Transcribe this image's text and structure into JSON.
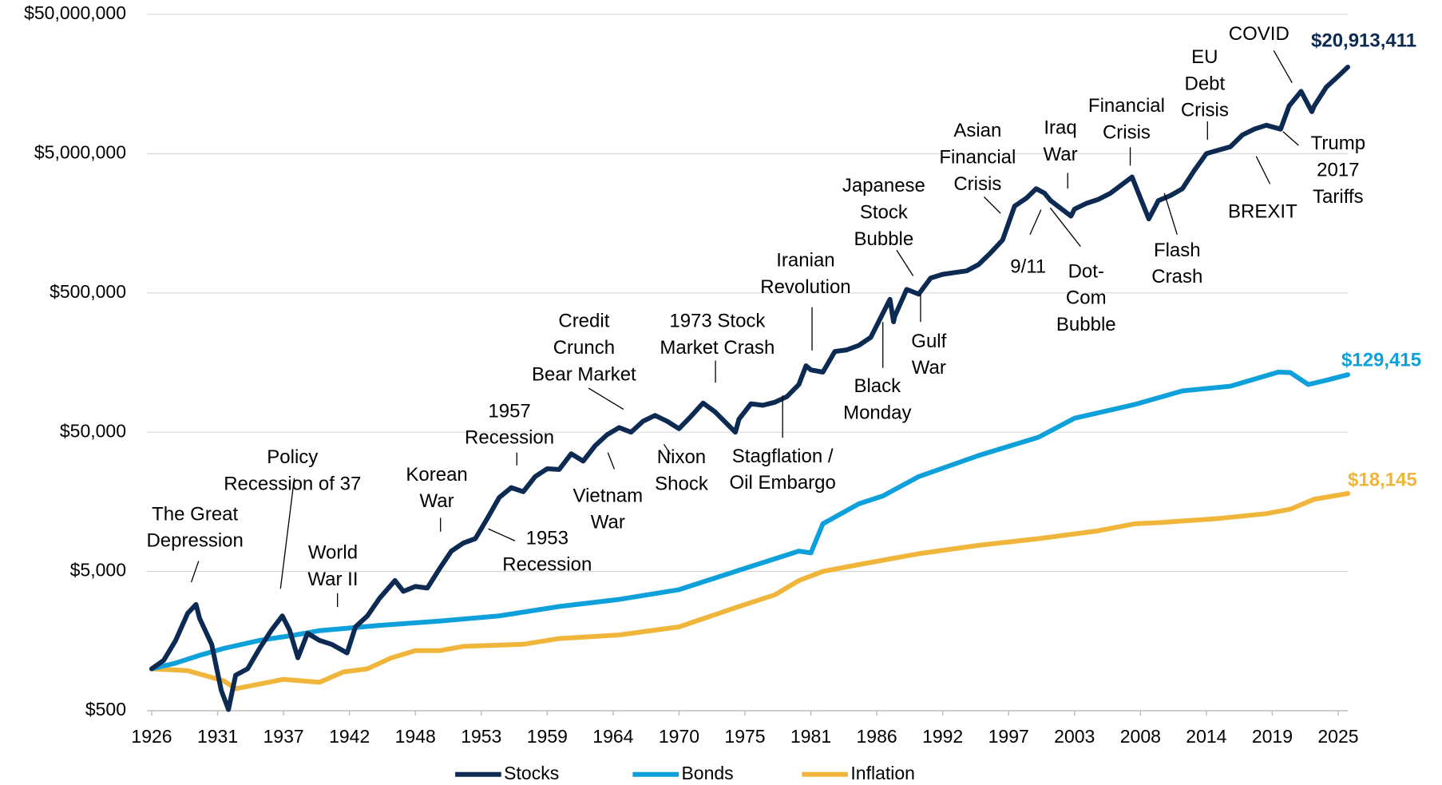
{
  "chart_data": {
    "type": "line",
    "log_scale": true,
    "grid": true,
    "legend": "bottom",
    "xlim": [
      1926,
      2025.8
    ],
    "xticks": [
      1926,
      {
        "value": 1931.5,
        "label": "1931"
      },
      1937,
      {
        "value": 1942.5,
        "label": "1942"
      },
      1948,
      {
        "value": 1953.5,
        "label": "1953"
      },
      1959,
      {
        "value": 1964.5,
        "label": "1964"
      },
      1970,
      {
        "value": 1975.5,
        "label": "1975"
      },
      1981,
      {
        "value": 1986.5,
        "label": "1986"
      },
      1992,
      {
        "value": 1997.5,
        "label": "1997"
      },
      2003,
      {
        "value": 2008.5,
        "label": "2008"
      },
      2014,
      {
        "value": 2019.5,
        "label": "2019"
      },
      2025
    ],
    "ylim": [
      500,
      50000000
    ],
    "yticks": [
      {
        "value": 500,
        "label": "$500"
      },
      {
        "value": 5000,
        "label": "$5,000"
      },
      {
        "value": 50000,
        "label": "$50,000"
      },
      {
        "value": 500000,
        "label": "$500,000"
      },
      {
        "value": 5000000,
        "label": "$5,000,000"
      },
      {
        "value": 50000000,
        "label": "$50,000,000"
      }
    ],
    "series": [
      {
        "name": "Stocks",
        "color": "#0d2a52",
        "x": [
          1926,
          1927,
          1928,
          1929,
          1929.7,
          1930,
          1931,
          1931.8,
          1932.4,
          1933,
          1934,
          1935,
          1936,
          1936.9,
          1937.5,
          1938.2,
          1939,
          1940,
          1941,
          1942.3,
          1943,
          1944,
          1945,
          1946.3,
          1947,
          1948,
          1949,
          1950,
          1951,
          1952,
          1953,
          1954,
          1955,
          1956,
          1957,
          1958,
          1959,
          1960,
          1961,
          1962,
          1963,
          1964,
          1965,
          1966,
          1967,
          1968,
          1969,
          1970,
          1971,
          1972,
          1973,
          1974.7,
          1975,
          1976,
          1977,
          1978,
          1979,
          1980,
          1980.6,
          1981,
          1982,
          1983,
          1984,
          1985,
          1986,
          1987.6,
          1987.9,
          1988,
          1989,
          1990,
          1991,
          1992,
          1993,
          1994,
          1995,
          1996,
          1997,
          1998,
          1999,
          1999.8,
          2000.5,
          2001,
          2002.7,
          2003,
          2004,
          2005,
          2006,
          2007.8,
          2008.5,
          2009.2,
          2010,
          2011,
          2012,
          2013,
          2014,
          2015,
          2016,
          2017,
          2018,
          2019,
          2020.2,
          2020.9,
          2021.9,
          2022.8,
          2023,
          2024,
          2025,
          2025.8
        ],
        "values": [
          1000,
          1150,
          1600,
          2500,
          2900,
          2300,
          1500,
          700,
          510,
          900,
          1000,
          1400,
          1900,
          2400,
          1900,
          1200,
          1800,
          1600,
          1500,
          1300,
          2000,
          2400,
          3200,
          4300,
          3600,
          3900,
          3800,
          5200,
          7000,
          8000,
          8600,
          12000,
          17000,
          20000,
          18700,
          24000,
          27300,
          27000,
          35000,
          31000,
          40000,
          48000,
          54000,
          50000,
          60000,
          66000,
          60000,
          53000,
          65000,
          81000,
          70000,
          50000,
          62000,
          80000,
          78000,
          82000,
          90000,
          110000,
          150000,
          140000,
          135000,
          190000,
          195000,
          210000,
          240000,
          450000,
          310000,
          340000,
          530000,
          490000,
          640000,
          680000,
          700000,
          720000,
          800000,
          970000,
          1200000,
          2100000,
          2400000,
          2800000,
          2600000,
          2300000,
          1780000,
          2000000,
          2200000,
          2350000,
          2600000,
          3400000,
          2400000,
          1700000,
          2300000,
          2500000,
          2800000,
          3800000,
          5000000,
          5300000,
          5600000,
          6800000,
          7500000,
          8000000,
          7500000,
          11000000,
          14000000,
          10000000,
          11000000,
          15000000,
          18000000,
          20913411
        ],
        "value_labels": [
          null,
          null,
          null,
          null,
          null,
          null,
          null,
          null,
          null,
          null,
          null,
          null,
          null,
          null,
          null,
          null,
          null,
          null,
          null,
          null,
          null,
          null,
          null,
          null,
          null,
          null,
          null,
          null,
          null,
          null,
          null,
          null,
          null,
          null,
          null,
          null,
          null,
          null,
          null,
          null,
          null,
          null,
          null,
          null,
          null,
          null,
          null,
          null,
          null,
          null,
          null,
          null,
          null,
          null,
          null,
          null,
          null,
          null,
          null,
          null,
          null,
          null,
          null,
          null,
          null,
          null,
          null,
          null,
          null,
          null,
          null,
          null,
          null,
          null,
          null,
          null,
          null,
          null,
          null,
          null,
          null,
          null,
          null,
          null,
          null,
          null,
          null,
          null,
          null,
          null,
          null,
          null,
          null,
          null,
          null,
          null,
          null,
          null,
          null,
          null,
          null,
          null,
          null,
          null,
          null,
          null,
          null,
          "$20,913,411"
        ]
      },
      {
        "name": "Bonds",
        "color": "#0ea0db",
        "x": [
          1926,
          1928,
          1930,
          1932,
          1935,
          1938,
          1940,
          1945,
          1950,
          1955,
          1960,
          1965,
          1970,
          1975,
          1980,
          1981,
          1982,
          1985,
          1987,
          1990,
          1995,
          2000,
          2003,
          2008,
          2012,
          2016,
          2020,
          2021,
          2022.5,
          2024,
          2025.8
        ],
        "values": [
          1000,
          1100,
          1250,
          1400,
          1600,
          1750,
          1880,
          2050,
          2200,
          2400,
          2800,
          3150,
          3700,
          5100,
          7000,
          6800,
          11000,
          15300,
          17400,
          24000,
          34000,
          46000,
          63000,
          79000,
          99000,
          107000,
          135000,
          134000,
          110000,
          118000,
          129415
        ],
        "value_labels": [
          null,
          null,
          null,
          null,
          null,
          null,
          null,
          null,
          null,
          null,
          null,
          null,
          null,
          null,
          null,
          null,
          null,
          null,
          null,
          null,
          null,
          null,
          null,
          null,
          null,
          null,
          null,
          null,
          null,
          null,
          "$129,415"
        ]
      },
      {
        "name": "Inflation",
        "color": "#f0b63c",
        "x": [
          1926,
          1929,
          1932,
          1933,
          1937,
          1940,
          1942,
          1944,
          1946,
          1948,
          1950,
          1952,
          1957,
          1960,
          1965,
          1970,
          1975,
          1978,
          1980,
          1982,
          1985,
          1990,
          1995,
          2000,
          2005,
          2008,
          2010,
          2015,
          2019,
          2021,
          2023,
          2025.8
        ],
        "values": [
          1000,
          970,
          820,
          720,
          840,
          800,
          950,
          1000,
          1200,
          1350,
          1350,
          1450,
          1500,
          1650,
          1750,
          2000,
          2800,
          3400,
          4300,
          5000,
          5600,
          6700,
          7700,
          8600,
          9800,
          11000,
          11200,
          12000,
          13000,
          14000,
          16500,
          18145
        ],
        "value_labels": [
          null,
          null,
          null,
          null,
          null,
          null,
          null,
          null,
          null,
          null,
          null,
          null,
          null,
          null,
          null,
          null,
          null,
          null,
          null,
          null,
          null,
          null,
          null,
          null,
          null,
          null,
          null,
          null,
          null,
          null,
          null,
          "$18,145"
        ]
      }
    ],
    "annotations": [
      {
        "text": [
          "The Great",
          "Depression"
        ]
      },
      {
        "text": [
          "Policy",
          "Recession of 37"
        ]
      },
      {
        "text": [
          "World",
          "War II"
        ]
      },
      {
        "text": [
          "Korean",
          "War"
        ]
      },
      {
        "text": [
          "1953",
          "Recession"
        ]
      },
      {
        "text": [
          "1957",
          "Recession"
        ]
      },
      {
        "text": [
          "Credit",
          "Crunch",
          "Bear Market"
        ]
      },
      {
        "text": [
          "Vietnam",
          "War"
        ]
      },
      {
        "text": [
          "Nixon",
          "Shock"
        ]
      },
      {
        "text": [
          "1973 Stock",
          "Market Crash"
        ]
      },
      {
        "text": [
          "Stagflation /",
          "Oil Embargo"
        ]
      },
      {
        "text": [
          "Iranian",
          "Revolution"
        ]
      },
      {
        "text": [
          "Black",
          "Monday"
        ]
      },
      {
        "text": [
          "Japanese",
          "Stock",
          "Bubble"
        ]
      },
      {
        "text": [
          "Gulf",
          "War"
        ]
      },
      {
        "text": [
          "Asian",
          "Financial",
          "Crisis"
        ]
      },
      {
        "text": [
          "9/11"
        ]
      },
      {
        "text": [
          "Iraq",
          "War"
        ]
      },
      {
        "text": [
          "Dot-",
          "Com",
          "Bubble"
        ]
      },
      {
        "text": [
          "Financial",
          "Crisis"
        ]
      },
      {
        "text": [
          "Flash",
          "Crash"
        ]
      },
      {
        "text": [
          "EU",
          "Debt",
          "Crisis"
        ]
      },
      {
        "text": [
          "BREXIT"
        ]
      },
      {
        "text": [
          "COVID"
        ]
      },
      {
        "text": [
          "Trump",
          "2017",
          "Tariffs"
        ]
      }
    ]
  }
}
